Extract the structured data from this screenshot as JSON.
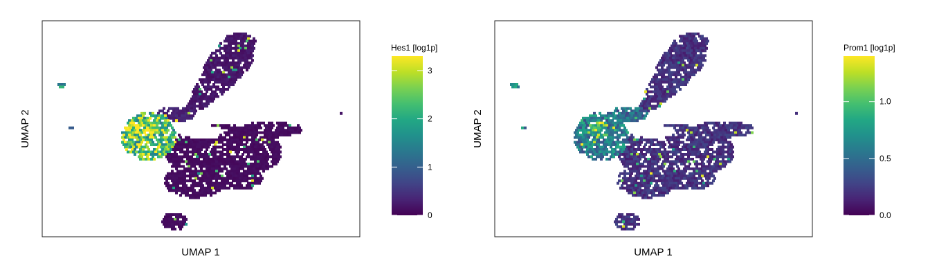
{
  "chart_data": [
    {
      "type": "scatter",
      "subtype": "hexbin-umap-feature-plot",
      "title": "",
      "xlabel": "UMAP 1",
      "ylabel": "UMAP 2",
      "axis_ticks": false,
      "grid": false,
      "colorbar": {
        "title": "Hes1 [log1p]",
        "colormap": "viridis",
        "range": [
          0,
          3.3
        ],
        "ticks": [
          0,
          1,
          2,
          3
        ],
        "tick_labels": [
          "0",
          "1",
          "2",
          "3"
        ],
        "placement": "right"
      },
      "regions": [
        {
          "name": "upper-arm",
          "level": "low",
          "value": 0.2
        },
        {
          "name": "left-lobe",
          "level": "high",
          "value": 2.4
        },
        {
          "name": "left-lobe-core",
          "level": "peak",
          "value": 3.0
        },
        {
          "name": "central-ring",
          "level": "low",
          "value": 0.3
        },
        {
          "name": "lower-body",
          "level": "low",
          "value": 0.1
        },
        {
          "name": "bottom-island",
          "level": "low",
          "value": 0.1
        },
        {
          "name": "small-cluster-left",
          "level": "mid",
          "value": 1.0
        },
        {
          "name": "small-cluster-right",
          "level": "low",
          "value": 0.2
        }
      ]
    },
    {
      "type": "scatter",
      "subtype": "hexbin-umap-feature-plot",
      "title": "",
      "xlabel": "UMAP 1",
      "ylabel": "UMAP 2",
      "axis_ticks": false,
      "grid": false,
      "colorbar": {
        "title": "Prom1 [log1p]",
        "colormap": "viridis",
        "range": [
          0,
          1.4
        ],
        "ticks": [
          0.0,
          0.5,
          1.0
        ],
        "tick_labels": [
          "0.0",
          "0.5",
          "1.0"
        ],
        "placement": "right"
      },
      "regions": [
        {
          "name": "upper-arm",
          "level": "low",
          "value": 0.2
        },
        {
          "name": "left-lobe",
          "level": "mid",
          "value": 0.6
        },
        {
          "name": "left-lobe-core",
          "level": "high",
          "value": 1.0
        },
        {
          "name": "central-ring",
          "level": "mid",
          "value": 0.5
        },
        {
          "name": "lower-body",
          "level": "low",
          "value": 0.2
        },
        {
          "name": "bottom-island",
          "level": "low",
          "value": 0.2
        },
        {
          "name": "small-cluster-left",
          "level": "mid",
          "value": 0.6
        },
        {
          "name": "small-cluster-right",
          "level": "low",
          "value": 0.2
        }
      ]
    }
  ]
}
